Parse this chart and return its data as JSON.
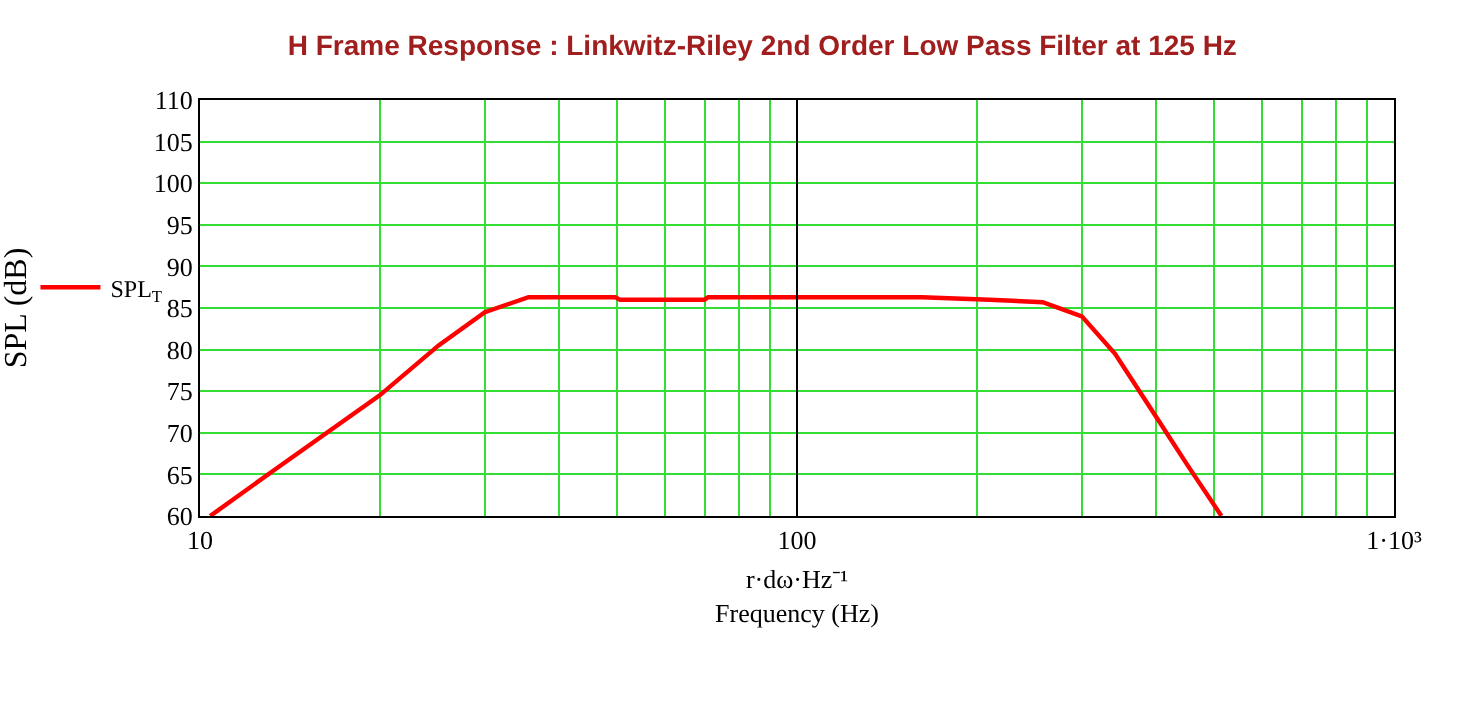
{
  "chart_data": {
    "type": "line",
    "title": "H Frame Response : Linkwitz-Riley 2nd Order Low Pass Filter at 125 Hz",
    "xlabel": "r·dω·Hz⁻¹\nFrequency (Hz)",
    "ylabel": "SPL (dB)",
    "log": "x",
    "xlim": [
      10,
      1000
    ],
    "xticks": [
      10,
      100,
      {
        "value": 1000,
        "label": "1·10³"
      }
    ],
    "ylim": [
      60,
      110
    ],
    "yticks": [
      60,
      65,
      70,
      75,
      80,
      85,
      90,
      95,
      100,
      105,
      110
    ],
    "grid": true,
    "legend": "left",
    "marker": "none",
    "line_style": "solid",
    "ref_lines": [
      {
        "axis": "x",
        "value": 100,
        "color": "#000000"
      }
    ],
    "series": [
      {
        "name": "SPL$_{T}$",
        "color": "#ff0000",
        "x": [
          10.4,
          13.3,
          20,
          25.1,
          30,
          35.5,
          49.6,
          50.5,
          70,
          71,
          100,
          162,
          210,
          258,
          300,
          341,
          403,
          452,
          514
        ],
        "values": [
          60,
          65.5,
          74.5,
          80.5,
          84.5,
          86.3,
          86.3,
          86,
          86,
          86.3,
          86.3,
          86.3,
          86,
          85.7,
          84,
          79.5,
          71.5,
          66,
          60
        ]
      }
    ]
  }
}
